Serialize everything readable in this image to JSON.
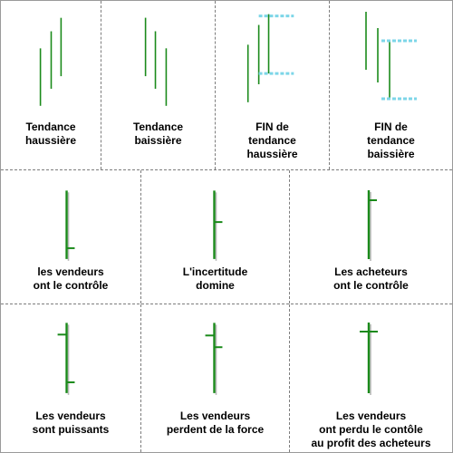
{
  "colors": {
    "bar": "#1a8a1a",
    "bar_shadow": "#b8b8b8",
    "level": "#7dd6e8"
  },
  "row1": {
    "c1": {
      "lines": [
        "Tendance",
        "haussière"
      ]
    },
    "c2": {
      "lines": [
        "Tendance",
        "baissière"
      ]
    },
    "c3": {
      "lines": [
        "FIN de",
        "tendance",
        "haussière"
      ]
    },
    "c4": {
      "lines": [
        "FIN de",
        "tendance",
        "baissière"
      ]
    }
  },
  "row2": {
    "c1": {
      "lines": [
        "les vendeurs",
        "ont le contrôle"
      ]
    },
    "c2": {
      "lines": [
        "L'incertitude",
        "domine"
      ]
    },
    "c3": {
      "lines": [
        "Les acheteurs",
        "ont le contrôle"
      ]
    }
  },
  "row3": {
    "c1": {
      "lines": [
        "Les vendeurs",
        "sont puissants"
      ]
    },
    "c2": {
      "lines": [
        "Les vendeurs",
        "perdent de la force"
      ]
    },
    "c3": {
      "lines": [
        "Les vendeurs",
        "ont perdu le contôle",
        "au profit des acheteurs"
      ]
    }
  }
}
